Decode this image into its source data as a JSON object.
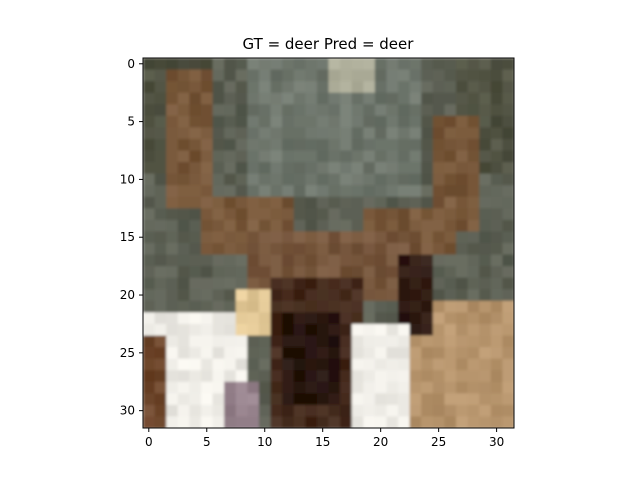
{
  "chart_data": {
    "type": "heatmap",
    "title": "GT = deer Pred = deer",
    "image_size": [
      32,
      32
    ],
    "x_ticks": [
      "0",
      "5",
      "10",
      "15",
      "20",
      "25",
      "30"
    ],
    "y_ticks": [
      "0",
      "5",
      "10",
      "15",
      "20",
      "25",
      "30"
    ],
    "xlim": [
      -0.5,
      31.5
    ],
    "ylim": [
      31.5,
      -0.5
    ],
    "xlabel": "",
    "ylabel": "",
    "grid": false,
    "content": "low-resolution 32x32 photo of a deer head with antlers; dark green/grey forest background, brown antlers, white patches lower-left and lower-center, tan fur lower-right"
  }
}
